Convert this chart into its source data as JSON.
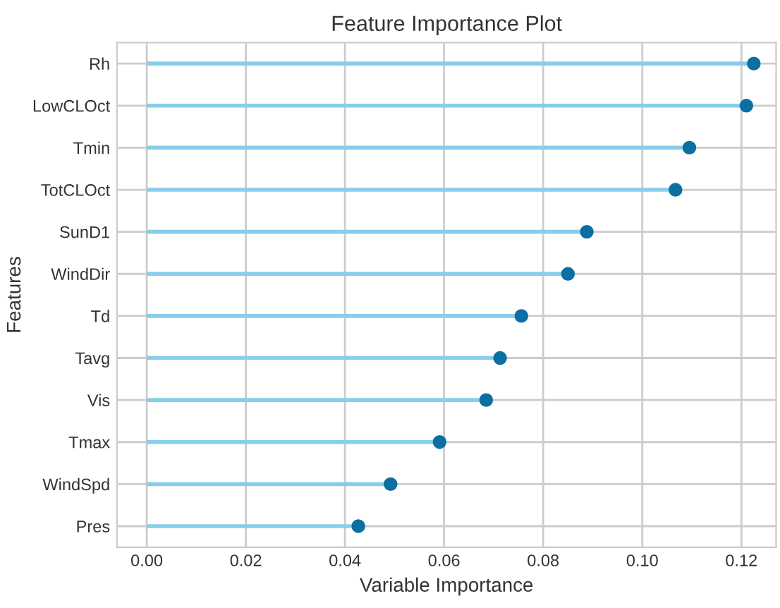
{
  "chart_data": {
    "type": "lollipop",
    "title": "Feature Importance Plot",
    "xlabel": "Variable Importance",
    "ylabel": "Features",
    "orientation": "horizontal",
    "categories": [
      "Rh",
      "LowCLOct",
      "Tmin",
      "TotCLOct",
      "SunD1",
      "WindDir",
      "Td",
      "Tavg",
      "Vis",
      "Tmax",
      "WindSpd",
      "Pres"
    ],
    "color": "#87ceeb",
    "series": [
      {
        "color": "#0b6fa3",
        "values": [
          0.1225,
          0.121,
          0.1095,
          0.1067,
          0.0888,
          0.085,
          0.0756,
          0.0713,
          0.0685,
          0.0591,
          0.0492,
          0.0427
        ]
      }
    ],
    "xlim": [
      -0.006,
      0.127
    ],
    "xticks": [
      {
        "value": 0,
        "label": "0.00"
      },
      {
        "value": 0.02,
        "label": "0.02"
      },
      {
        "value": 0.04,
        "label": "0.04"
      },
      {
        "value": 0.06,
        "label": "0.06"
      },
      {
        "value": 0.08,
        "label": "0.08"
      },
      {
        "value": 0.1,
        "label": "0.10"
      },
      {
        "value": 0.12,
        "label": "0.12"
      }
    ],
    "grid": true,
    "marker": "circle"
  }
}
